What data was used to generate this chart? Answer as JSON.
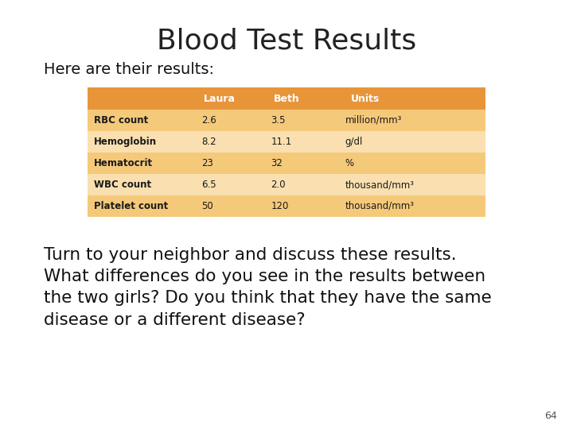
{
  "title": "Blood Test Results",
  "subtitle": "Here are their results:",
  "table": {
    "header": [
      "",
      "Laura",
      "Beth",
      "Units"
    ],
    "rows": [
      [
        "RBC count",
        "2.6",
        "3.5",
        "million/mm³"
      ],
      [
        "Hemoglobin",
        "8.2",
        "11.1",
        "g/dl"
      ],
      [
        "Hematocrit",
        "23",
        "32",
        "%"
      ],
      [
        "WBC count",
        "6.5",
        "2.0",
        "thousand/mm³"
      ],
      [
        "Platelet count",
        "50",
        "120",
        "thousand/mm³"
      ]
    ]
  },
  "body_text": "Turn to your neighbor and discuss these results.\nWhat differences do you see in the results between\nthe two girls? Do you think that they have the same\ndisease or a different disease?",
  "page_number": "64",
  "header_bg": "#E8953A",
  "row_bg_odd": "#F5C97A",
  "row_bg_even": "#FAE0B0",
  "header_text_color": "#FFFFFF",
  "row_text_color": "#1A1A1A",
  "title_color": "#222222",
  "subtitle_color": "#111111",
  "body_color": "#111111",
  "bg_color": "#FFFFFF"
}
